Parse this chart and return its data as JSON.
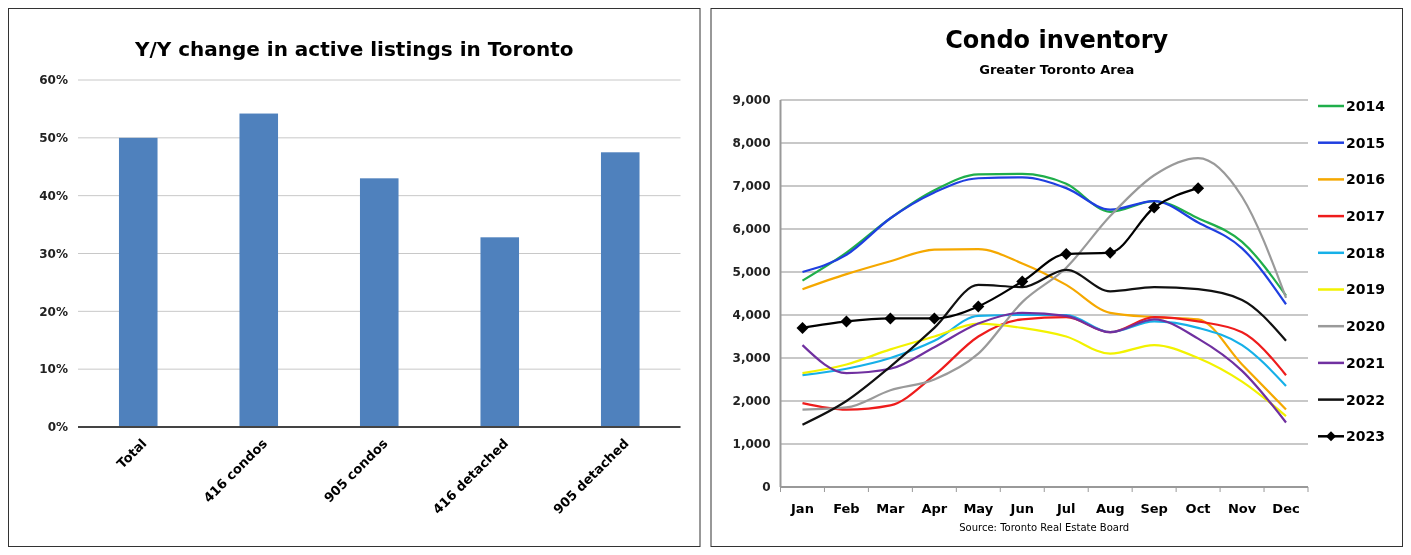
{
  "chart_data": [
    {
      "type": "bar",
      "title": "Y/Y change in active listings in Toronto",
      "categories": [
        "Total",
        "416 condos",
        "905 condos",
        "416 detached",
        "905 detached"
      ],
      "values": [
        50,
        54.2,
        43,
        32.8,
        47.5
      ],
      "color": "#4f81bd",
      "ylim": [
        0,
        60
      ],
      "yticks": [
        {
          "value": 0,
          "label": "0%"
        },
        {
          "value": 10,
          "label": "10%"
        },
        {
          "value": 20,
          "label": "20%"
        },
        {
          "value": 30,
          "label": "30%"
        },
        {
          "value": 40,
          "label": "40%"
        },
        {
          "value": 50,
          "label": "50%"
        },
        {
          "value": 60,
          "label": "60%"
        }
      ],
      "grid": "y",
      "legend": false
    },
    {
      "type": "line",
      "title": "Condo inventory",
      "subtitle": "Greater Toronto Area",
      "annotations": [
        "Source: Toronto Real Estate Board"
      ],
      "categories": [
        "Jan",
        "Feb",
        "Mar",
        "Apr",
        "May",
        "Jun",
        "Jul",
        "Aug",
        "Sep",
        "Oct",
        "Nov",
        "Dec"
      ],
      "ylim": [
        0,
        9000
      ],
      "yticks": [
        {
          "value": 0,
          "label": "0"
        },
        {
          "value": 1000,
          "label": "1,000"
        },
        {
          "value": 2000,
          "label": "2,000"
        },
        {
          "value": 3000,
          "label": "3,000"
        },
        {
          "value": 4000,
          "label": "4,000"
        },
        {
          "value": 5000,
          "label": "5,000"
        },
        {
          "value": 6000,
          "label": "6,000"
        },
        {
          "value": 7000,
          "label": "7,000"
        },
        {
          "value": 8000,
          "label": "8,000"
        },
        {
          "value": 9000,
          "label": "9,000"
        }
      ],
      "grid": "y",
      "legend": "right",
      "marker": "none",
      "series": [
        {
          "name": "2014",
          "color": "#1fae4a",
          "values": [
            4800,
            5450,
            6250,
            6900,
            7270,
            7280,
            7050,
            6400,
            6650,
            6250,
            5700,
            4450
          ]
        },
        {
          "name": "2015",
          "color": "#1f3fe0",
          "values": [
            5000,
            5400,
            6250,
            6850,
            7180,
            7200,
            6950,
            6450,
            6650,
            6150,
            5550,
            4250
          ]
        },
        {
          "name": "2016",
          "color": "#f5a800",
          "values": [
            4600,
            4950,
            5250,
            5520,
            5530,
            5200,
            4700,
            4050,
            3950,
            3900,
            2850,
            1800
          ]
        },
        {
          "name": "2017",
          "color": "#ee1c1c",
          "values": [
            1950,
            1800,
            1900,
            2600,
            3500,
            3900,
            3950,
            3600,
            3950,
            3850,
            3600,
            2600
          ]
        },
        {
          "name": "2018",
          "color": "#16b0e8",
          "values": [
            2600,
            2750,
            3000,
            3400,
            3980,
            4000,
            4000,
            3600,
            3850,
            3700,
            3300,
            2350
          ]
        },
        {
          "name": "2019",
          "color": "#f2f200",
          "values": [
            2650,
            2850,
            3200,
            3500,
            3800,
            3700,
            3500,
            3100,
            3300,
            3000,
            2450,
            1650
          ]
        },
        {
          "name": "2020",
          "color": "#9a9a9a",
          "values": [
            1800,
            1850,
            2250,
            2500,
            3100,
            4300,
            5100,
            6300,
            7250,
            7650,
            6750,
            4400
          ]
        },
        {
          "name": "2021",
          "color": "#7030a0",
          "values": [
            3300,
            2650,
            2750,
            3250,
            3800,
            4050,
            3980,
            3600,
            3900,
            3450,
            2700,
            1500
          ]
        },
        {
          "name": "2022",
          "color": "#111111",
          "values": [
            1450,
            2000,
            2800,
            3700,
            4700,
            4650,
            5050,
            4550,
            4650,
            4600,
            4350,
            3400
          ]
        },
        {
          "name": "2023",
          "color": "#000000",
          "marker": "diamond",
          "values": [
            3700,
            3850,
            3920,
            3920,
            4200,
            4780,
            5420,
            5450,
            6500,
            6950,
            null,
            null
          ]
        }
      ]
    }
  ]
}
